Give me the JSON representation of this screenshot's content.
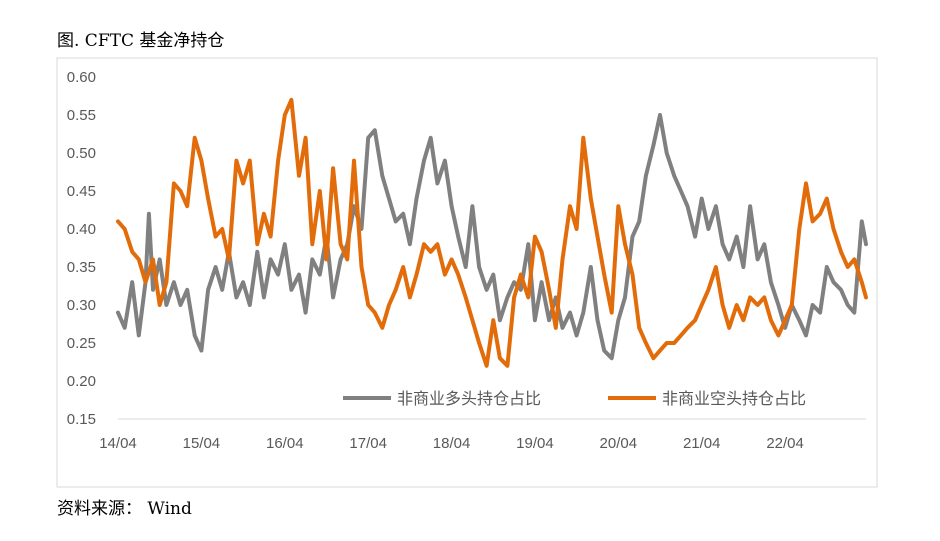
{
  "header": {
    "title": "图. CFTC 基金净持仓"
  },
  "footer": {
    "source": "资料来源： Wind"
  },
  "chart_data": {
    "type": "line",
    "title": "图. CFTC 基金净持仓",
    "xlabel": "",
    "ylabel": "",
    "ylim": [
      0.15,
      0.6
    ],
    "yticks": [
      "0.60",
      "0.55",
      "0.50",
      "0.45",
      "0.40",
      "0.35",
      "0.30",
      "0.25",
      "0.20",
      "0.15"
    ],
    "xticks": [
      "14/04",
      "15/04",
      "16/04",
      "17/04",
      "18/04",
      "19/04",
      "20/04",
      "21/04",
      "22/04"
    ],
    "xlim": [
      2014.25,
      2023.22
    ],
    "grid": false,
    "legend_position": "bottom-right",
    "series": [
      {
        "name": "非商业多头持仓占比",
        "color": "#808080",
        "points": [
          [
            2014.25,
            0.29
          ],
          [
            2014.33,
            0.27
          ],
          [
            2014.42,
            0.33
          ],
          [
            2014.5,
            0.26
          ],
          [
            2014.58,
            0.33
          ],
          [
            2014.62,
            0.42
          ],
          [
            2014.67,
            0.32
          ],
          [
            2014.75,
            0.36
          ],
          [
            2014.83,
            0.3
          ],
          [
            2014.92,
            0.33
          ],
          [
            2015.0,
            0.3
          ],
          [
            2015.08,
            0.32
          ],
          [
            2015.17,
            0.26
          ],
          [
            2015.25,
            0.24
          ],
          [
            2015.33,
            0.32
          ],
          [
            2015.42,
            0.35
          ],
          [
            2015.5,
            0.32
          ],
          [
            2015.58,
            0.37
          ],
          [
            2015.67,
            0.31
          ],
          [
            2015.75,
            0.33
          ],
          [
            2015.83,
            0.3
          ],
          [
            2015.92,
            0.37
          ],
          [
            2016.0,
            0.31
          ],
          [
            2016.08,
            0.36
          ],
          [
            2016.17,
            0.34
          ],
          [
            2016.25,
            0.38
          ],
          [
            2016.33,
            0.32
          ],
          [
            2016.42,
            0.34
          ],
          [
            2016.5,
            0.29
          ],
          [
            2016.58,
            0.36
          ],
          [
            2016.67,
            0.34
          ],
          [
            2016.75,
            0.39
          ],
          [
            2016.83,
            0.31
          ],
          [
            2016.92,
            0.36
          ],
          [
            2017.0,
            0.38
          ],
          [
            2017.08,
            0.43
          ],
          [
            2017.17,
            0.4
          ],
          [
            2017.25,
            0.52
          ],
          [
            2017.33,
            0.53
          ],
          [
            2017.42,
            0.47
          ],
          [
            2017.5,
            0.44
          ],
          [
            2017.58,
            0.41
          ],
          [
            2017.67,
            0.42
          ],
          [
            2017.75,
            0.38
          ],
          [
            2017.83,
            0.44
          ],
          [
            2017.92,
            0.49
          ],
          [
            2018.0,
            0.52
          ],
          [
            2018.08,
            0.46
          ],
          [
            2018.17,
            0.49
          ],
          [
            2018.25,
            0.43
          ],
          [
            2018.33,
            0.39
          ],
          [
            2018.42,
            0.35
          ],
          [
            2018.5,
            0.43
          ],
          [
            2018.58,
            0.35
          ],
          [
            2018.67,
            0.32
          ],
          [
            2018.75,
            0.34
          ],
          [
            2018.83,
            0.28
          ],
          [
            2018.92,
            0.31
          ],
          [
            2019.0,
            0.33
          ],
          [
            2019.08,
            0.32
          ],
          [
            2019.17,
            0.38
          ],
          [
            2019.25,
            0.28
          ],
          [
            2019.33,
            0.33
          ],
          [
            2019.42,
            0.28
          ],
          [
            2019.5,
            0.31
          ],
          [
            2019.58,
            0.27
          ],
          [
            2019.67,
            0.29
          ],
          [
            2019.75,
            0.26
          ],
          [
            2019.83,
            0.29
          ],
          [
            2019.92,
            0.35
          ],
          [
            2020.0,
            0.28
          ],
          [
            2020.08,
            0.24
          ],
          [
            2020.17,
            0.23
          ],
          [
            2020.25,
            0.28
          ],
          [
            2020.33,
            0.31
          ],
          [
            2020.42,
            0.39
          ],
          [
            2020.5,
            0.41
          ],
          [
            2020.58,
            0.47
          ],
          [
            2020.67,
            0.51
          ],
          [
            2020.75,
            0.55
          ],
          [
            2020.83,
            0.5
          ],
          [
            2020.92,
            0.47
          ],
          [
            2021.0,
            0.45
          ],
          [
            2021.08,
            0.43
          ],
          [
            2021.17,
            0.39
          ],
          [
            2021.25,
            0.44
          ],
          [
            2021.33,
            0.4
          ],
          [
            2021.42,
            0.43
          ],
          [
            2021.5,
            0.38
          ],
          [
            2021.58,
            0.36
          ],
          [
            2021.67,
            0.39
          ],
          [
            2021.75,
            0.35
          ],
          [
            2021.83,
            0.43
          ],
          [
            2021.92,
            0.36
          ],
          [
            2022.0,
            0.38
          ],
          [
            2022.08,
            0.33
          ],
          [
            2022.17,
            0.3
          ],
          [
            2022.25,
            0.27
          ],
          [
            2022.33,
            0.3
          ],
          [
            2022.42,
            0.28
          ],
          [
            2022.5,
            0.26
          ],
          [
            2022.58,
            0.3
          ],
          [
            2022.67,
            0.29
          ],
          [
            2022.75,
            0.35
          ],
          [
            2022.83,
            0.33
          ],
          [
            2022.92,
            0.32
          ],
          [
            2023.0,
            0.3
          ],
          [
            2023.08,
            0.29
          ],
          [
            2023.17,
            0.41
          ],
          [
            2023.22,
            0.38
          ]
        ]
      },
      {
        "name": "非商业空头持仓占比",
        "color": "#E36C0A",
        "points": [
          [
            2014.25,
            0.41
          ],
          [
            2014.33,
            0.4
          ],
          [
            2014.42,
            0.37
          ],
          [
            2014.5,
            0.36
          ],
          [
            2014.58,
            0.33
          ],
          [
            2014.67,
            0.36
          ],
          [
            2014.75,
            0.3
          ],
          [
            2014.83,
            0.33
          ],
          [
            2014.92,
            0.46
          ],
          [
            2015.0,
            0.45
          ],
          [
            2015.08,
            0.43
          ],
          [
            2015.17,
            0.52
          ],
          [
            2015.25,
            0.49
          ],
          [
            2015.33,
            0.44
          ],
          [
            2015.42,
            0.39
          ],
          [
            2015.5,
            0.4
          ],
          [
            2015.58,
            0.36
          ],
          [
            2015.67,
            0.49
          ],
          [
            2015.75,
            0.46
          ],
          [
            2015.83,
            0.49
          ],
          [
            2015.92,
            0.38
          ],
          [
            2016.0,
            0.42
          ],
          [
            2016.08,
            0.39
          ],
          [
            2016.17,
            0.49
          ],
          [
            2016.25,
            0.55
          ],
          [
            2016.33,
            0.57
          ],
          [
            2016.42,
            0.47
          ],
          [
            2016.5,
            0.52
          ],
          [
            2016.58,
            0.38
          ],
          [
            2016.67,
            0.45
          ],
          [
            2016.75,
            0.36
          ],
          [
            2016.83,
            0.48
          ],
          [
            2016.92,
            0.38
          ],
          [
            2017.0,
            0.36
          ],
          [
            2017.08,
            0.49
          ],
          [
            2017.17,
            0.35
          ],
          [
            2017.25,
            0.3
          ],
          [
            2017.33,
            0.29
          ],
          [
            2017.42,
            0.27
          ],
          [
            2017.5,
            0.3
          ],
          [
            2017.58,
            0.32
          ],
          [
            2017.67,
            0.35
          ],
          [
            2017.75,
            0.31
          ],
          [
            2017.83,
            0.34
          ],
          [
            2017.92,
            0.38
          ],
          [
            2018.0,
            0.37
          ],
          [
            2018.08,
            0.38
          ],
          [
            2018.17,
            0.34
          ],
          [
            2018.25,
            0.36
          ],
          [
            2018.33,
            0.34
          ],
          [
            2018.42,
            0.31
          ],
          [
            2018.5,
            0.28
          ],
          [
            2018.58,
            0.25
          ],
          [
            2018.67,
            0.22
          ],
          [
            2018.75,
            0.28
          ],
          [
            2018.83,
            0.23
          ],
          [
            2018.92,
            0.22
          ],
          [
            2019.0,
            0.31
          ],
          [
            2019.08,
            0.34
          ],
          [
            2019.17,
            0.31
          ],
          [
            2019.25,
            0.39
          ],
          [
            2019.33,
            0.37
          ],
          [
            2019.42,
            0.32
          ],
          [
            2019.5,
            0.27
          ],
          [
            2019.58,
            0.36
          ],
          [
            2019.67,
            0.43
          ],
          [
            2019.75,
            0.4
          ],
          [
            2019.83,
            0.52
          ],
          [
            2019.92,
            0.44
          ],
          [
            2020.0,
            0.39
          ],
          [
            2020.08,
            0.34
          ],
          [
            2020.17,
            0.29
          ],
          [
            2020.25,
            0.43
          ],
          [
            2020.33,
            0.38
          ],
          [
            2020.42,
            0.34
          ],
          [
            2020.5,
            0.27
          ],
          [
            2020.58,
            0.25
          ],
          [
            2020.67,
            0.23
          ],
          [
            2020.75,
            0.24
          ],
          [
            2020.83,
            0.25
          ],
          [
            2020.92,
            0.25
          ],
          [
            2021.0,
            0.26
          ],
          [
            2021.08,
            0.27
          ],
          [
            2021.17,
            0.28
          ],
          [
            2021.25,
            0.3
          ],
          [
            2021.33,
            0.32
          ],
          [
            2021.42,
            0.35
          ],
          [
            2021.5,
            0.3
          ],
          [
            2021.58,
            0.27
          ],
          [
            2021.67,
            0.3
          ],
          [
            2021.75,
            0.28
          ],
          [
            2021.83,
            0.31
          ],
          [
            2021.92,
            0.3
          ],
          [
            2022.0,
            0.31
          ],
          [
            2022.08,
            0.28
          ],
          [
            2022.17,
            0.26
          ],
          [
            2022.25,
            0.28
          ],
          [
            2022.33,
            0.3
          ],
          [
            2022.42,
            0.4
          ],
          [
            2022.5,
            0.46
          ],
          [
            2022.58,
            0.41
          ],
          [
            2022.67,
            0.42
          ],
          [
            2022.75,
            0.44
          ],
          [
            2022.83,
            0.4
          ],
          [
            2022.92,
            0.37
          ],
          [
            2023.0,
            0.35
          ],
          [
            2023.08,
            0.36
          ],
          [
            2023.17,
            0.33
          ],
          [
            2023.22,
            0.31
          ]
        ]
      }
    ]
  }
}
